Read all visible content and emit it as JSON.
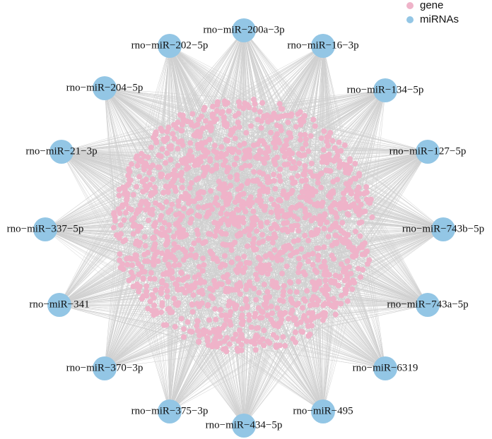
{
  "legend": [
    {
      "label": "gene",
      "color": "#efb3c9"
    },
    {
      "label": "miRNAs",
      "color": "#93c6e5"
    }
  ],
  "nodes": [
    {
      "label": "rno−miR−200a−3p"
    },
    {
      "label": "rno−miR−16−3p"
    },
    {
      "label": "rno−miR−134−5p"
    },
    {
      "label": "rno−miR−127−5p"
    },
    {
      "label": "rno−miR−743b−5p"
    },
    {
      "label": "rno−miR−743a−5p"
    },
    {
      "label": "rno−miR−6319"
    },
    {
      "label": "rno−miR−495"
    },
    {
      "label": "rno−miR−434−5p"
    },
    {
      "label": "rno−miR−375−3p"
    },
    {
      "label": "rno−miR−370−3p"
    },
    {
      "label": "rno−miR−341"
    },
    {
      "label": "rno−miR−337−5p"
    },
    {
      "label": "rno−miR−21−3p"
    },
    {
      "label": "rno−miR−204−5p"
    },
    {
      "label": "rno−miR−202−5p"
    }
  ]
}
